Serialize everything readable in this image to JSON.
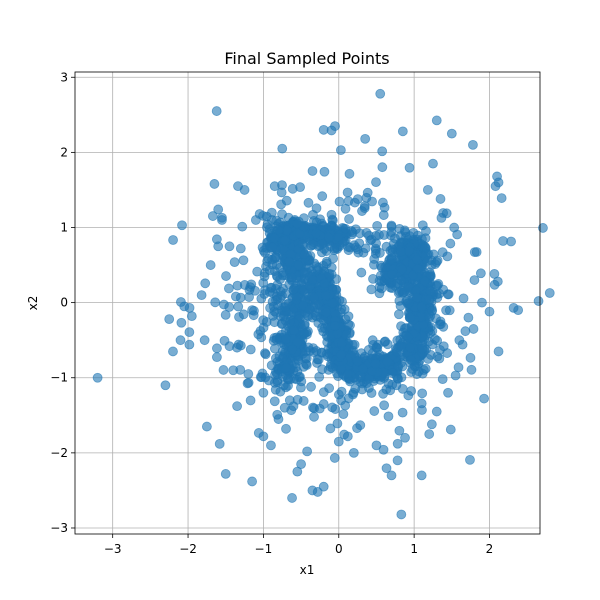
{
  "chart_data": {
    "type": "scatter",
    "title": "Final Sampled Points",
    "xlabel": "x1",
    "ylabel": "x2",
    "xlim": [
      -3.5,
      2.67
    ],
    "ylim": [
      -3.08,
      3.07
    ],
    "xticks": [
      -3,
      -2,
      -1,
      0,
      1,
      2
    ],
    "yticks": [
      -3,
      -2,
      -1,
      0,
      1,
      2,
      3
    ],
    "xtick_labels": [
      "−3",
      "−2",
      "−1",
      "0",
      "1",
      "2"
    ],
    "ytick_labels": [
      "−3",
      "−2",
      "−1",
      "0",
      "1",
      "2",
      "3"
    ],
    "grid": true,
    "marker_color": "#1f77b4",
    "marker_alpha": 0.6,
    "series": [
      {
        "values": [
          [
            -3.2,
            -1.0
          ],
          [
            -2.3,
            -1.1
          ],
          [
            -2.25,
            -0.22
          ],
          [
            -2.2,
            -0.65
          ],
          [
            -2.1,
            -0.5
          ],
          [
            -2.08,
            1.03
          ],
          [
            -2.05,
            -0.05
          ],
          [
            -1.98,
            -0.07
          ],
          [
            -1.95,
            -0.18
          ],
          [
            -1.82,
            0.1
          ],
          [
            -1.78,
            -0.5
          ],
          [
            -1.75,
            -1.65
          ],
          [
            -1.7,
            0.5
          ],
          [
            -1.65,
            1.58
          ],
          [
            -1.62,
            2.55
          ],
          [
            -1.6,
            0.75
          ],
          [
            -1.58,
            -1.88
          ],
          [
            -1.55,
            1.1
          ],
          [
            -1.55,
            1.13
          ],
          [
            -1.5,
            -2.28
          ],
          [
            -1.45,
            -0.58
          ],
          [
            -1.45,
            0.75
          ],
          [
            -1.4,
            -0.9
          ],
          [
            -1.35,
            -0.6
          ],
          [
            -1.3,
            0.72
          ],
          [
            -1.25,
            1.5
          ],
          [
            -1.2,
            -0.95
          ],
          [
            -1.15,
            -2.38
          ],
          [
            -1.1,
            1.1
          ],
          [
            -1.05,
            1.18
          ],
          [
            -1.0,
            -1.78
          ],
          [
            -1.0,
            -1.2
          ],
          [
            -0.95,
            0.55
          ],
          [
            -0.9,
            -1.9
          ],
          [
            -0.85,
            1.55
          ],
          [
            -0.8,
            -1.55
          ],
          [
            -0.75,
            2.05
          ],
          [
            -0.7,
            -1.68
          ],
          [
            -0.65,
            -1.3
          ],
          [
            -0.62,
            -2.6
          ],
          [
            -0.55,
            -2.25
          ],
          [
            -0.5,
            -2.15
          ],
          [
            -0.42,
            -1.98
          ],
          [
            -0.35,
            -2.5
          ],
          [
            -0.28,
            -2.52
          ],
          [
            -0.2,
            -2.45
          ],
          [
            -0.2,
            2.3
          ],
          [
            -0.05,
            2.35
          ],
          [
            0.0,
            -1.85
          ],
          [
            0.12,
            -1.78
          ],
          [
            0.2,
            -2.0
          ],
          [
            0.35,
            2.18
          ],
          [
            0.5,
            -1.9
          ],
          [
            0.55,
            2.78
          ],
          [
            0.7,
            -2.3
          ],
          [
            0.78,
            -2.1
          ],
          [
            0.83,
            -2.82
          ],
          [
            0.85,
            2.28
          ],
          [
            1.1,
            -2.3
          ],
          [
            1.2,
            -1.75
          ],
          [
            1.3,
            -1.45
          ],
          [
            1.45,
            -1.2
          ],
          [
            1.5,
            2.25
          ],
          [
            1.55,
            -0.97
          ],
          [
            1.6,
            -0.5
          ],
          [
            1.68,
            -0.38
          ],
          [
            1.72,
            -0.2
          ],
          [
            1.78,
            2.1
          ],
          [
            1.8,
            0.3
          ],
          [
            1.9,
            0.0
          ],
          [
            2.0,
            -0.12
          ],
          [
            2.08,
            1.55
          ],
          [
            2.1,
            1.68
          ],
          [
            2.12,
            1.6
          ],
          [
            2.12,
            -0.65
          ],
          [
            2.18,
            0.82
          ],
          [
            2.32,
            -0.07
          ],
          [
            2.38,
            -0.1
          ],
          [
            1.35,
            1.38
          ],
          [
            1.25,
            1.85
          ],
          [
            -0.35,
            -0.2
          ],
          [
            0.45,
            -0.5
          ],
          [
            0.6,
            0.9
          ],
          [
            -0.9,
            0.2
          ],
          [
            0.3,
            0.4
          ],
          [
            -0.55,
            1.05
          ],
          [
            0.15,
            -1.05
          ],
          [
            -0.2,
            -1.35
          ],
          [
            0.95,
            -0.2
          ],
          [
            -1.15,
            -0.1
          ]
        ]
      }
    ]
  }
}
